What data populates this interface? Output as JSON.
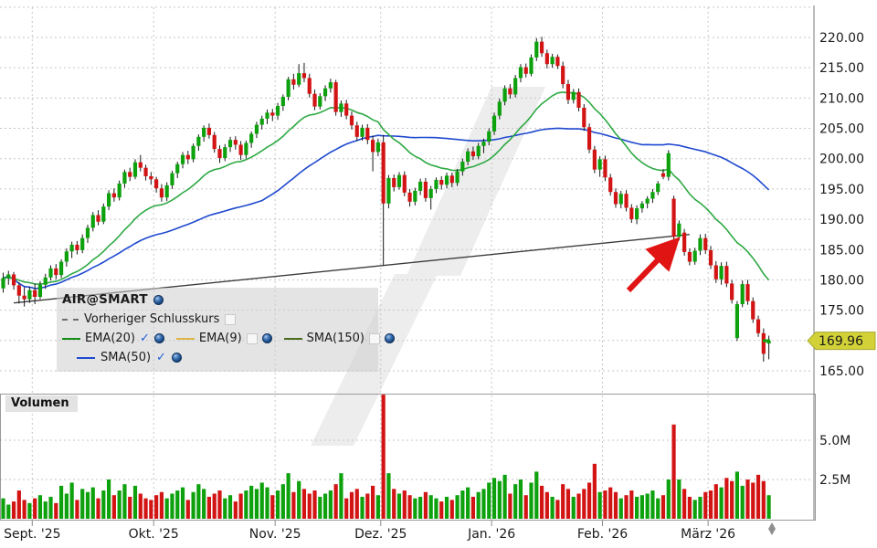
{
  "volume_panel": {
    "label": "Volumen"
  },
  "chart_data": {
    "type": "candlestick",
    "symbol": "AIR@SMART",
    "last_price": 169.96,
    "last_price_label": "169.96",
    "price_axis": {
      "min": 165,
      "max": 225,
      "grid_step": 5,
      "tick_values": [
        220,
        215,
        210,
        205,
        200,
        195,
        190,
        185,
        180,
        175,
        165
      ],
      "tick_labels": [
        "220.00",
        "215.00",
        "210.00",
        "205.00",
        "200.00",
        "195.00",
        "190.00",
        "185.00",
        "180.00",
        "175.00",
        "165.00"
      ]
    },
    "volume_axis": {
      "unit": "M",
      "tick_values": [
        5.0,
        2.5
      ],
      "tick_labels": [
        "5.0M",
        "2.5M"
      ]
    },
    "months": {
      "labels": [
        "Sept. '25",
        "Okt. '25",
        "Nov. '25",
        "Dez. '25",
        "Jan. '26",
        "Feb. '26",
        "März '26"
      ],
      "start_indices": [
        6,
        29,
        52,
        72,
        93,
        114,
        134
      ]
    },
    "prev_close": {
      "label": "Vorheriger Schlusskurs",
      "enabled": false
    },
    "indicators": [
      {
        "name": "EMA(20)",
        "type": "ema",
        "period": 20,
        "color": "#2ea944",
        "enabled": true
      },
      {
        "name": "EMA(9)",
        "type": "ema",
        "period": 9,
        "color": "#dcb54b",
        "enabled": false
      },
      {
        "name": "SMA(150)",
        "type": "sma",
        "period": 150,
        "color": "#4a6b1c",
        "enabled": false
      },
      {
        "name": "SMA(50)",
        "type": "sma",
        "period": 50,
        "color": "#1f49cf",
        "enabled": true
      }
    ],
    "trendline": {
      "start_index": 2,
      "start_price": 176.2,
      "end_index": 130,
      "end_price": 187.5
    },
    "arrow_annotation": {
      "from": [
        688,
        318
      ],
      "to": [
        736,
        268
      ],
      "color": "#e11414"
    },
    "colors": {
      "up": "#0da10d",
      "down": "#d31414",
      "wick": "#1a1a1a",
      "badge_bg": "#d2d238",
      "badge_border": "#a8a82e"
    },
    "candles": [
      [
        178.6,
        181.2,
        177.9,
        180.3,
        1.3
      ],
      [
        180.3,
        181.5,
        179.2,
        180.9,
        0.9
      ],
      [
        180.9,
        181.3,
        178.4,
        179.1,
        1.1
      ],
      [
        179.1,
        179.6,
        176.1,
        177.4,
        1.8
      ],
      [
        177.4,
        178.8,
        175.6,
        176.8,
        1.2
      ],
      [
        176.8,
        178.9,
        176.2,
        178.3,
        1.0
      ],
      [
        178.3,
        179.4,
        176.0,
        177.2,
        1.3
      ],
      [
        177.2,
        179.8,
        176.8,
        179.2,
        1.5
      ],
      [
        179.2,
        181.0,
        178.5,
        180.4,
        1.1
      ],
      [
        180.4,
        182.4,
        179.9,
        181.9,
        1.4
      ],
      [
        181.9,
        182.6,
        180.1,
        180.8,
        1.0
      ],
      [
        180.8,
        183.4,
        180.3,
        183.0,
        2.1
      ],
      [
        183.0,
        185.2,
        182.2,
        184.7,
        1.6
      ],
      [
        184.7,
        186.3,
        183.6,
        185.8,
        2.3
      ],
      [
        185.8,
        186.4,
        184.2,
        184.9,
        1.2
      ],
      [
        184.9,
        187.5,
        184.4,
        186.9,
        1.9
      ],
      [
        186.9,
        189.1,
        186.1,
        188.6,
        1.7
      ],
      [
        188.6,
        191.2,
        188.0,
        190.7,
        2.0
      ],
      [
        190.7,
        191.5,
        189.0,
        189.6,
        1.3
      ],
      [
        189.6,
        192.6,
        189.2,
        192.1,
        1.8
      ],
      [
        192.1,
        194.8,
        191.5,
        194.3,
        2.5
      ],
      [
        194.3,
        195.1,
        192.9,
        193.6,
        1.5
      ],
      [
        193.6,
        196.4,
        193.1,
        195.9,
        1.8
      ],
      [
        195.9,
        198.2,
        195.2,
        197.8,
        2.2
      ],
      [
        197.8,
        198.5,
        196.3,
        197.0,
        1.4
      ],
      [
        197.0,
        199.9,
        196.6,
        199.4,
        2.1
      ],
      [
        199.4,
        200.6,
        197.9,
        198.5,
        1.6
      ],
      [
        198.5,
        199.0,
        196.4,
        197.1,
        1.3
      ],
      [
        197.1,
        197.8,
        195.7,
        196.6,
        1.2
      ],
      [
        196.6,
        197.0,
        194.4,
        195.1,
        1.5
      ],
      [
        195.1,
        195.8,
        192.9,
        193.6,
        1.7
      ],
      [
        193.6,
        196.1,
        193.0,
        195.6,
        1.3
      ],
      [
        195.6,
        198.0,
        195.0,
        197.6,
        1.6
      ],
      [
        197.6,
        199.5,
        196.8,
        199.1,
        1.8
      ],
      [
        199.1,
        201.1,
        198.4,
        200.6,
        2.0
      ],
      [
        200.6,
        201.3,
        199.1,
        199.9,
        1.2
      ],
      [
        199.9,
        202.5,
        199.4,
        202.1,
        1.7
      ],
      [
        202.1,
        204.0,
        201.3,
        203.6,
        2.2
      ],
      [
        203.6,
        205.5,
        202.8,
        205.1,
        1.9
      ],
      [
        205.1,
        205.8,
        203.3,
        203.9,
        1.4
      ],
      [
        203.9,
        204.4,
        201.0,
        201.6,
        1.6
      ],
      [
        201.6,
        202.2,
        199.3,
        200.1,
        1.8
      ],
      [
        200.1,
        202.4,
        199.6,
        201.9,
        1.3
      ],
      [
        201.9,
        203.6,
        201.1,
        203.1,
        1.5
      ],
      [
        203.1,
        203.7,
        201.5,
        202.3,
        1.1
      ],
      [
        202.3,
        202.9,
        199.8,
        200.6,
        1.6
      ],
      [
        200.6,
        203.0,
        200.0,
        202.6,
        1.8
      ],
      [
        202.6,
        204.5,
        201.8,
        204.1,
        2.1
      ],
      [
        204.1,
        206.1,
        203.4,
        205.6,
        1.9
      ],
      [
        205.6,
        207.1,
        204.8,
        206.6,
        2.3
      ],
      [
        206.6,
        208.1,
        205.7,
        207.6,
        2.0
      ],
      [
        207.6,
        208.2,
        206.2,
        207.1,
        1.5
      ],
      [
        207.1,
        209.2,
        206.4,
        208.7,
        1.8
      ],
      [
        208.7,
        210.6,
        207.9,
        210.2,
        2.2
      ],
      [
        210.2,
        213.5,
        209.6,
        213.1,
        2.9
      ],
      [
        213.1,
        214.0,
        211.4,
        212.2,
        1.7
      ],
      [
        212.2,
        215.6,
        211.8,
        214.1,
        2.4
      ],
      [
        214.1,
        215.8,
        212.6,
        213.3,
        1.9
      ],
      [
        213.3,
        214.0,
        210.1,
        210.7,
        1.6
      ],
      [
        210.7,
        211.4,
        208.0,
        208.6,
        1.8
      ],
      [
        208.6,
        210.8,
        208.1,
        210.3,
        1.4
      ],
      [
        210.3,
        212.1,
        209.5,
        211.6,
        1.6
      ],
      [
        211.6,
        213.2,
        210.9,
        212.6,
        1.8
      ],
      [
        212.6,
        213.0,
        207.1,
        207.7,
        2.2
      ],
      [
        207.7,
        209.6,
        206.9,
        209.1,
        2.9
      ],
      [
        209.1,
        209.7,
        206.5,
        207.1,
        1.3
      ],
      [
        207.1,
        207.8,
        204.8,
        205.5,
        1.7
      ],
      [
        205.5,
        206.1,
        202.9,
        203.6,
        1.9
      ],
      [
        203.6,
        205.6,
        203.0,
        205.1,
        1.4
      ],
      [
        205.1,
        205.7,
        202.4,
        203.1,
        1.6
      ],
      [
        203.1,
        203.8,
        197.9,
        201.1,
        2.1
      ],
      [
        201.1,
        203.3,
        200.4,
        202.7,
        1.5
      ],
      [
        202.7,
        203.9,
        182.4,
        192.6,
        7.9
      ],
      [
        192.6,
        197.3,
        191.8,
        196.8,
        2.9
      ],
      [
        196.8,
        197.4,
        194.6,
        195.3,
        1.9
      ],
      [
        195.3,
        197.8,
        194.9,
        197.3,
        1.6
      ],
      [
        197.3,
        197.9,
        193.8,
        194.4,
        1.8
      ],
      [
        194.4,
        195.0,
        192.1,
        192.9,
        1.5
      ],
      [
        192.9,
        195.2,
        192.3,
        194.7,
        1.3
      ],
      [
        194.7,
        196.7,
        194.0,
        196.2,
        1.4
      ],
      [
        196.2,
        196.8,
        192.9,
        193.5,
        1.7
      ],
      [
        193.5,
        195.5,
        191.6,
        195.0,
        1.5
      ],
      [
        195.0,
        196.9,
        194.3,
        196.5,
        1.3
      ],
      [
        196.5,
        197.1,
        194.9,
        195.7,
        1.1
      ],
      [
        195.7,
        197.7,
        195.1,
        197.2,
        1.4
      ],
      [
        197.2,
        197.7,
        195.3,
        196.0,
        1.2
      ],
      [
        196.0,
        198.3,
        195.5,
        197.9,
        1.5
      ],
      [
        197.9,
        200.0,
        197.2,
        199.5,
        1.8
      ],
      [
        199.5,
        201.7,
        198.9,
        201.2,
        2.0
      ],
      [
        201.2,
        202.0,
        199.8,
        200.4,
        1.4
      ],
      [
        200.4,
        202.6,
        199.9,
        202.1,
        1.7
      ],
      [
        202.1,
        203.3,
        200.9,
        202.8,
        1.9
      ],
      [
        202.8,
        205.0,
        202.2,
        204.5,
        2.3
      ],
      [
        204.5,
        207.6,
        203.9,
        207.1,
        2.6
      ],
      [
        207.1,
        209.9,
        206.5,
        209.4,
        2.4
      ],
      [
        209.4,
        212.1,
        208.8,
        211.6,
        2.8
      ],
      [
        211.6,
        212.3,
        209.9,
        210.6,
        1.6
      ],
      [
        210.6,
        213.8,
        210.1,
        213.3,
        2.2
      ],
      [
        213.3,
        215.6,
        212.6,
        215.1,
        2.5
      ],
      [
        215.1,
        215.7,
        213.4,
        214.0,
        1.5
      ],
      [
        214.0,
        217.2,
        213.6,
        216.7,
        2.3
      ],
      [
        216.7,
        219.9,
        216.1,
        219.3,
        3.0
      ],
      [
        219.3,
        220.1,
        216.8,
        217.4,
        2.1
      ],
      [
        217.4,
        218.0,
        214.9,
        215.6,
        1.7
      ],
      [
        215.6,
        217.3,
        215.0,
        216.8,
        1.4
      ],
      [
        216.8,
        217.2,
        214.8,
        215.3,
        1.2
      ],
      [
        215.3,
        216.0,
        211.6,
        212.3,
        2.2
      ],
      [
        212.3,
        213.0,
        209.0,
        209.7,
        1.9
      ],
      [
        209.7,
        211.5,
        209.1,
        211.0,
        1.4
      ],
      [
        211.0,
        211.6,
        207.8,
        208.4,
        1.6
      ],
      [
        208.4,
        209.0,
        204.6,
        205.2,
        1.9
      ],
      [
        205.2,
        205.8,
        200.9,
        201.5,
        2.3
      ],
      [
        201.5,
        202.1,
        197.6,
        198.2,
        3.5
      ],
      [
        198.2,
        200.4,
        197.0,
        199.9,
        1.7
      ],
      [
        199.9,
        200.5,
        196.3,
        196.9,
        1.8
      ],
      [
        196.9,
        197.5,
        193.9,
        194.5,
        2.0
      ],
      [
        194.5,
        195.1,
        191.9,
        192.5,
        1.7
      ],
      [
        192.5,
        194.7,
        191.8,
        194.2,
        1.3
      ],
      [
        194.2,
        194.8,
        191.3,
        191.9,
        1.5
      ],
      [
        191.9,
        192.5,
        189.4,
        190.0,
        1.8
      ],
      [
        190.0,
        192.3,
        189.2,
        191.8,
        1.4
      ],
      [
        191.8,
        193.0,
        191.1,
        192.6,
        1.5
      ],
      [
        192.6,
        193.8,
        191.8,
        193.4,
        1.6
      ],
      [
        193.4,
        195.0,
        192.7,
        194.5,
        1.8
      ],
      [
        194.5,
        196.3,
        194.0,
        195.9,
        1.3
      ],
      [
        197.6,
        198.3,
        196.6,
        197.0,
        1.5
      ],
      [
        197.0,
        201.4,
        196.4,
        200.9,
        2.5
      ],
      [
        193.4,
        193.9,
        184.9,
        187.1,
        6.0
      ],
      [
        187.1,
        189.8,
        186.5,
        189.3,
        2.5
      ],
      [
        187.8,
        188.4,
        184.0,
        184.6,
        1.9
      ],
      [
        184.6,
        185.2,
        182.4,
        183.0,
        1.4
      ],
      [
        183.0,
        185.3,
        182.5,
        184.8,
        1.2
      ],
      [
        184.8,
        187.5,
        184.1,
        186.9,
        1.4
      ],
      [
        186.9,
        187.6,
        184.3,
        184.9,
        1.7
      ],
      [
        184.9,
        185.6,
        181.8,
        182.4,
        1.8
      ],
      [
        182.4,
        183.1,
        179.5,
        180.1,
        2.2
      ],
      [
        180.1,
        182.9,
        179.2,
        182.3,
        2.0
      ],
      [
        182.3,
        183.0,
        178.8,
        179.4,
        2.6
      ],
      [
        179.4,
        180.0,
        176.1,
        176.7,
        2.4
      ],
      [
        170.4,
        176.5,
        169.9,
        176.0,
        3.0
      ],
      [
        176.0,
        179.9,
        175.5,
        179.3,
        2.1
      ],
      [
        179.3,
        180.0,
        175.9,
        176.5,
        2.5
      ],
      [
        176.5,
        177.1,
        172.9,
        173.5,
        2.3
      ],
      [
        173.5,
        174.1,
        170.6,
        171.2,
        2.8
      ],
      [
        171.2,
        172.0,
        166.5,
        167.8,
        2.4
      ],
      [
        169.5,
        170.8,
        166.9,
        169.96,
        1.5
      ]
    ]
  }
}
